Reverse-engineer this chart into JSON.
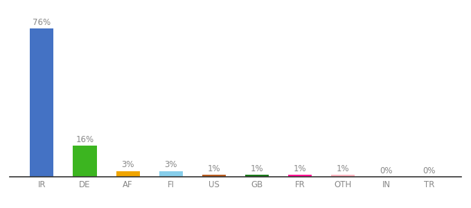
{
  "categories": [
    "IR",
    "DE",
    "AF",
    "FI",
    "US",
    "GB",
    "FR",
    "OTH",
    "IN",
    "TR"
  ],
  "values": [
    76,
    16,
    3,
    3,
    1,
    1,
    1,
    1,
    0,
    0
  ],
  "bar_colors": [
    "#4472c4",
    "#3cb520",
    "#f0a500",
    "#87ceeb",
    "#b85c20",
    "#1a7a1a",
    "#ff1493",
    "#ffb6c1",
    "#cccccc",
    "#cccccc"
  ],
  "labels": [
    "76%",
    "16%",
    "3%",
    "3%",
    "1%",
    "1%",
    "1%",
    "1%",
    "0%",
    "0%"
  ],
  "ylim": [
    0,
    82
  ],
  "background_color": "#ffffff",
  "label_fontsize": 8.5,
  "tick_fontsize": 8.5,
  "label_color": "#888888",
  "tick_color": "#888888",
  "spine_color": "#333333"
}
